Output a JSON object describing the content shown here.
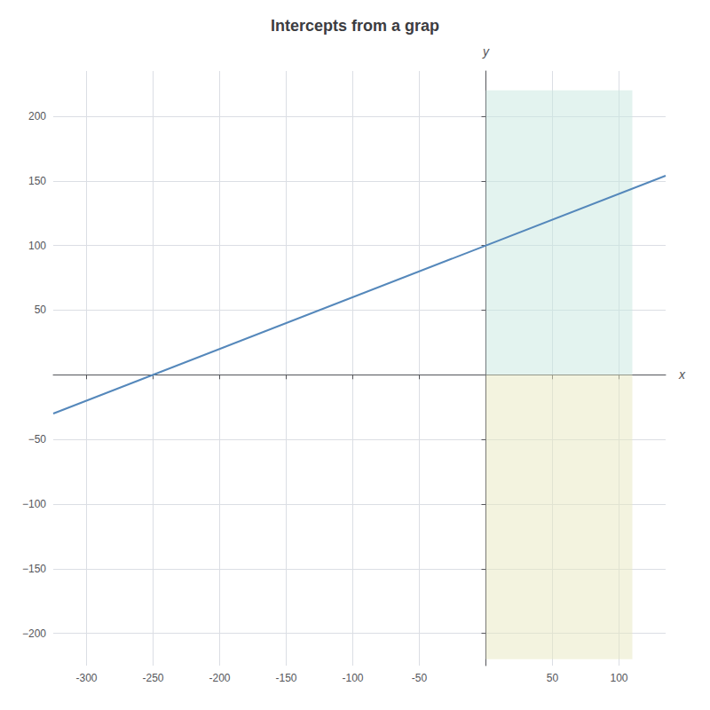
{
  "chart_data": {
    "type": "line",
    "title": "Intercepts from a grap",
    "xlabel": "x",
    "ylabel": "y",
    "x": [
      -325,
      135
    ],
    "values": [
      -30,
      154
    ],
    "color": "#5588bb",
    "xlim": [
      -325,
      135
    ],
    "ylim": [
      -225,
      235
    ],
    "xticks": [
      -300,
      -250,
      -200,
      -150,
      -100,
      -50,
      50,
      100
    ],
    "yticks": [
      {
        "value": -200,
        "label": "−200"
      },
      {
        "value": -150,
        "label": "−150"
      },
      {
        "value": -100,
        "label": "−100"
      },
      {
        "value": -50,
        "label": "−50"
      },
      50,
      100,
      150,
      200
    ],
    "regions": [
      {
        "x": [
          0,
          110
        ],
        "y": [
          0,
          220
        ],
        "color": "#c8e8e0"
      },
      {
        "x": [
          0,
          110
        ],
        "y": [
          -220,
          0
        ],
        "color": "#e8e8c0"
      }
    ],
    "grid": true
  }
}
